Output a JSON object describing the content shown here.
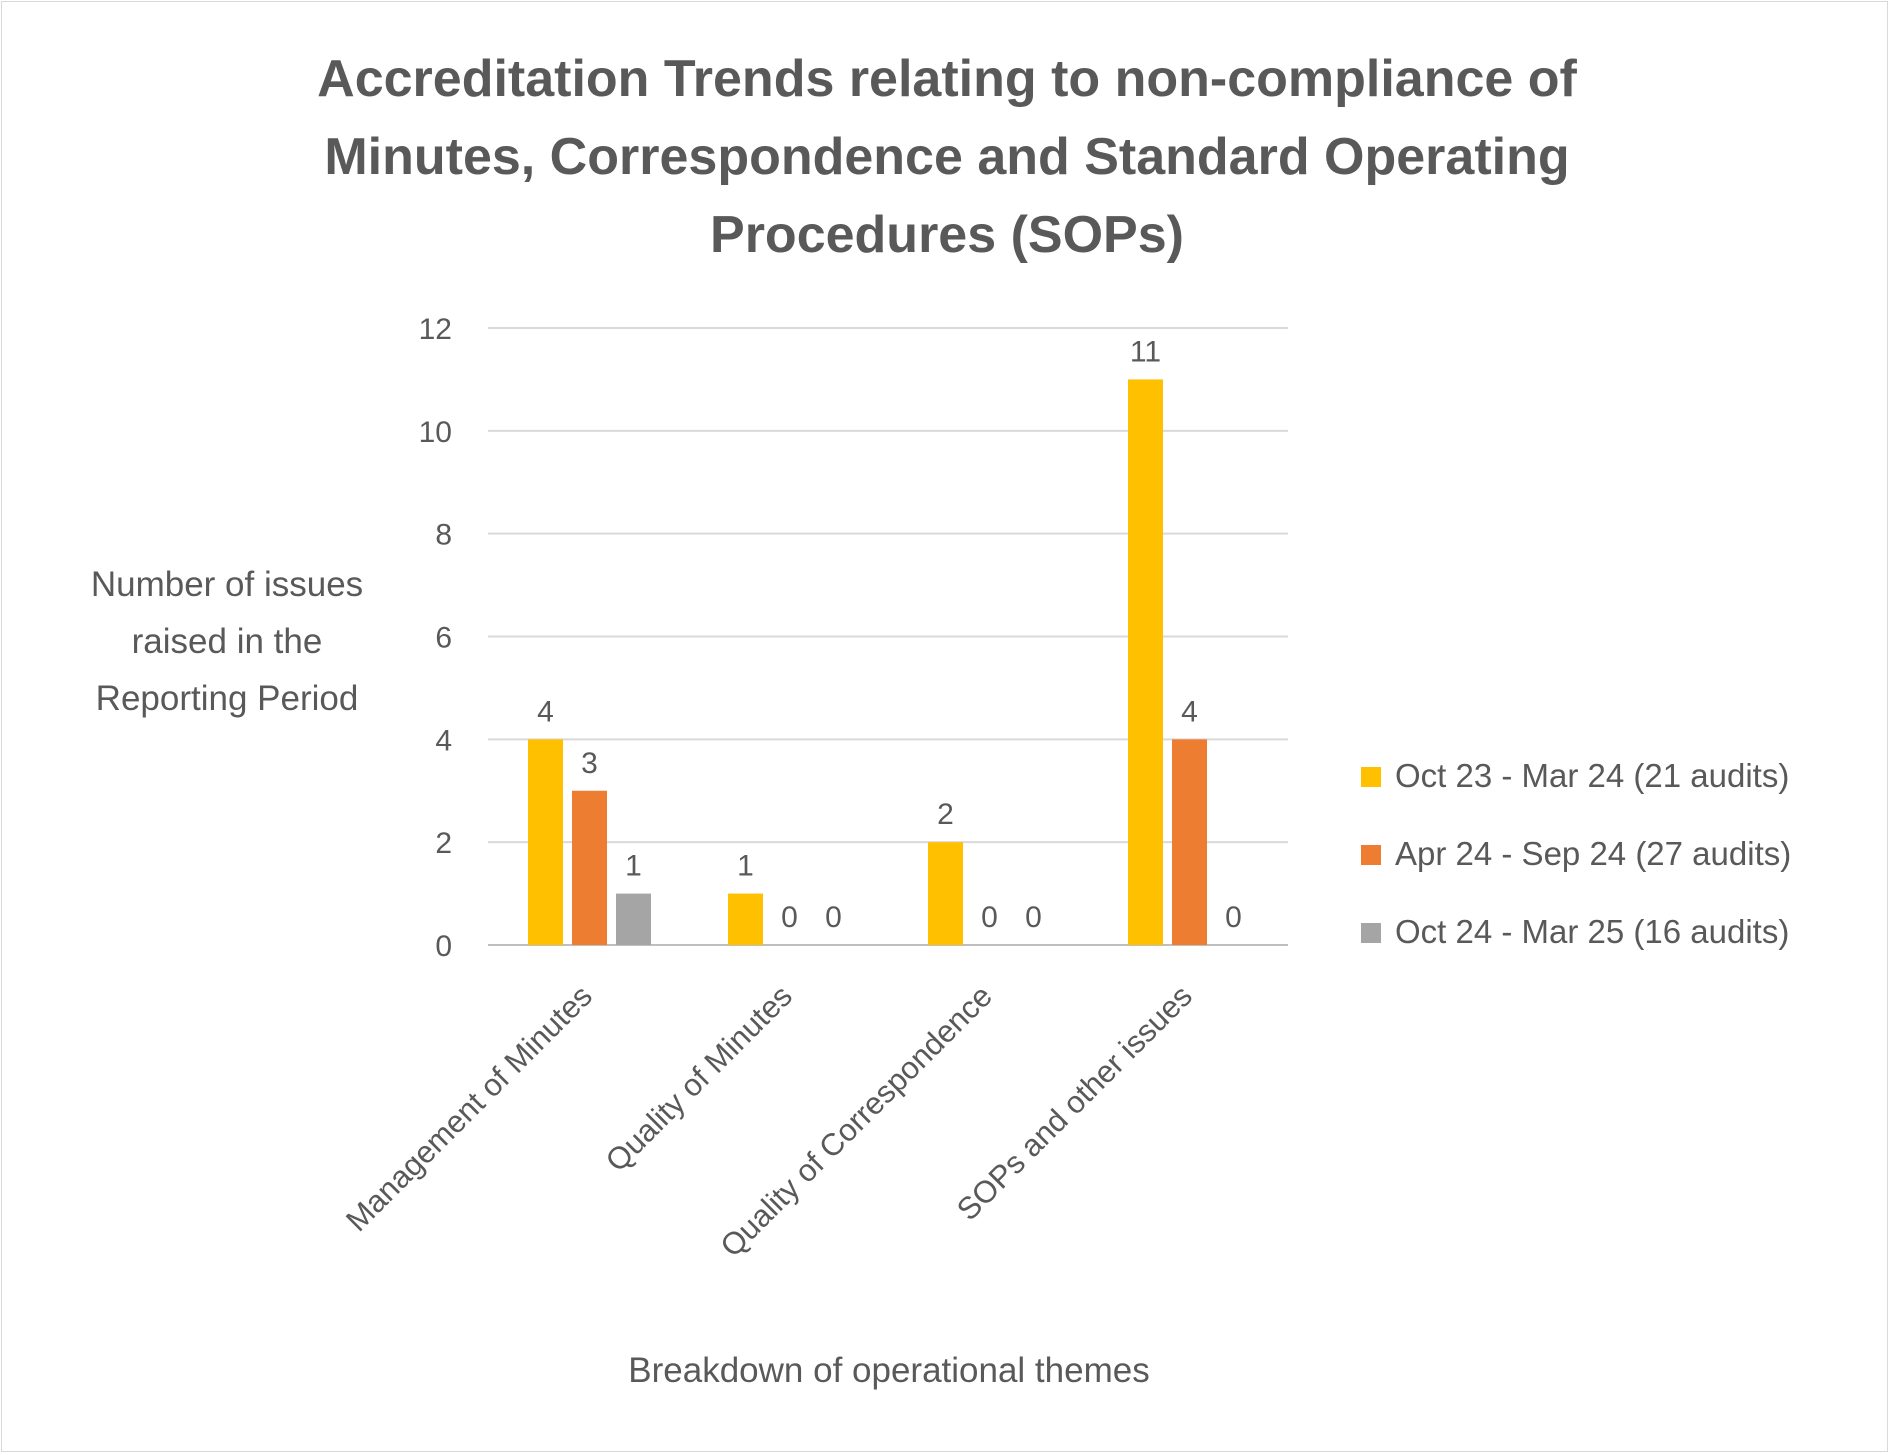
{
  "chart_data": {
    "type": "bar",
    "title": [
      "Accreditation Trends relating to non-compliance of",
      "Minutes, Correspondence and Standard Operating",
      "Procedures (SOPs)"
    ],
    "xlabel": "Breakdown of operational themes",
    "ylabel": [
      "Number of issues",
      "raised in the",
      "Reporting Period"
    ],
    "categories": [
      "Management of Minutes",
      "Quality of Minutes",
      "Quality of Correspondence",
      "SOPs and other issues"
    ],
    "series": [
      {
        "name": "Oct 23 - Mar 24 (21 audits)",
        "color": "#FFC000",
        "values": [
          4,
          1,
          2,
          11
        ]
      },
      {
        "name": "Apr 24 - Sep 24 (27 audits)",
        "color": "#ED7D31",
        "values": [
          3,
          0,
          0,
          4
        ]
      },
      {
        "name": "Oct 24 - Mar 25 (16 audits)",
        "color": "#A5A5A5",
        "values": [
          1,
          0,
          0,
          0
        ]
      }
    ],
    "data_labels_shown": [
      [
        true,
        true,
        true,
        true
      ],
      [
        true,
        true,
        true,
        true
      ],
      [
        true,
        true,
        true,
        true
      ]
    ],
    "ylim": [
      0,
      12
    ],
    "yticks": [
      0,
      2,
      4,
      6,
      8,
      10,
      12
    ],
    "grid": true,
    "legend": "right"
  }
}
